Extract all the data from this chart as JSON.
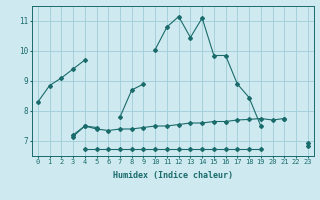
{
  "xlabel": "Humidex (Indice chaleur)",
  "background_color": "#ceeaf0",
  "grid_color": "#a0cdd6",
  "line_color": "#1a6b6b",
  "x_values": [
    0,
    1,
    2,
    3,
    4,
    5,
    6,
    7,
    8,
    9,
    10,
    11,
    12,
    13,
    14,
    15,
    16,
    17,
    18,
    19,
    20,
    21,
    22,
    23
  ],
  "series1": [
    8.3,
    8.85,
    9.1,
    9.4,
    9.7,
    null,
    null,
    null,
    null,
    null,
    10.05,
    10.8,
    11.15,
    10.45,
    11.1,
    9.85,
    9.85,
    8.9,
    8.45,
    7.5,
    null,
    7.75,
    null,
    null
  ],
  "series2": [
    null,
    null,
    null,
    7.2,
    7.5,
    7.45,
    null,
    7.8,
    8.7,
    8.9,
    null,
    null,
    null,
    null,
    null,
    null,
    null,
    null,
    null,
    null,
    null,
    null,
    null,
    null
  ],
  "series3": [
    null,
    null,
    null,
    7.15,
    7.5,
    7.4,
    7.35,
    7.4,
    7.4,
    7.45,
    7.5,
    7.5,
    7.55,
    7.6,
    7.6,
    7.65,
    7.65,
    7.7,
    7.72,
    7.75,
    7.7,
    7.75,
    null,
    6.95
  ],
  "series4": [
    null,
    null,
    null,
    null,
    6.75,
    6.75,
    6.75,
    6.75,
    6.75,
    6.75,
    6.75,
    6.75,
    6.75,
    6.75,
    6.75,
    6.75,
    6.75,
    6.75,
    6.75,
    6.75,
    null,
    null,
    null,
    6.85
  ],
  "ylim": [
    6.5,
    11.5
  ],
  "xlim": [
    -0.5,
    23.5
  ],
  "yticks": [
    7,
    8,
    9,
    10,
    11
  ],
  "xticks": [
    0,
    1,
    2,
    3,
    4,
    5,
    6,
    7,
    8,
    9,
    10,
    11,
    12,
    13,
    14,
    15,
    16,
    17,
    18,
    19,
    20,
    21,
    22,
    23
  ]
}
